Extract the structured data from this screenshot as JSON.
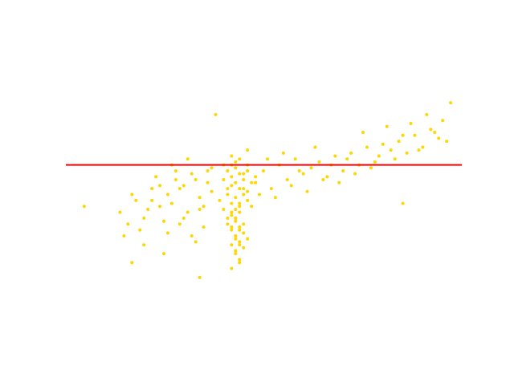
{
  "chart_data": {
    "type": "scatter",
    "x": [
      40,
      41,
      42,
      43,
      44,
      45,
      46,
      47,
      42,
      43,
      41,
      42,
      43,
      44,
      45,
      46,
      40,
      41,
      43,
      44,
      42,
      43,
      44,
      45,
      42,
      43,
      44,
      41,
      42,
      45,
      43,
      44,
      42,
      43,
      44,
      45,
      46,
      43,
      42,
      44,
      39,
      40,
      41,
      42,
      43,
      44,
      45,
      46,
      47,
      48,
      42,
      43,
      44,
      42,
      43,
      44,
      43,
      44,
      45,
      46,
      14,
      16,
      18,
      20,
      22,
      24,
      26,
      28,
      30,
      32,
      34,
      36,
      15,
      17,
      19,
      21,
      23,
      25,
      27,
      29,
      31,
      33,
      35,
      37,
      20,
      22,
      24,
      26,
      28,
      30,
      32,
      34,
      36,
      25,
      27,
      29,
      31,
      33,
      35,
      37,
      48,
      50,
      52,
      54,
      56,
      58,
      60,
      62,
      64,
      66,
      68,
      70,
      72,
      74,
      76,
      78,
      80,
      82,
      84,
      86,
      88,
      90,
      92,
      94,
      96,
      49,
      51,
      53,
      55,
      57,
      59,
      61,
      63,
      65,
      67,
      69,
      71,
      73,
      75,
      77,
      79,
      81,
      83,
      85,
      87,
      89,
      91,
      93,
      95,
      97,
      5,
      34,
      17,
      38,
      46,
      85
    ],
    "y": [
      60,
      58,
      56,
      54,
      52,
      50,
      48,
      46,
      44,
      42,
      40,
      38,
      36,
      34,
      32,
      35,
      55,
      52,
      49,
      46,
      43,
      41,
      39,
      37,
      47,
      45,
      44,
      50,
      53,
      57,
      61,
      62,
      63,
      59,
      57,
      55,
      58,
      30,
      33,
      28,
      48,
      45,
      42,
      39,
      36,
      33,
      40,
      51,
      54,
      56,
      60,
      31,
      27,
      25,
      35,
      38,
      42,
      47,
      52,
      60,
      44,
      40,
      48,
      42,
      52,
      46,
      50,
      55,
      53,
      57,
      49,
      58,
      36,
      50,
      38,
      45,
      56,
      41,
      47,
      52,
      44,
      55,
      39,
      51,
      33,
      48,
      53,
      37,
      58,
      42,
      36,
      45,
      54,
      30,
      60,
      40,
      62,
      34,
      46,
      59,
      54,
      58,
      52,
      60,
      55,
      62,
      57,
      59,
      61,
      56,
      63,
      58,
      64,
      60,
      66,
      61,
      67,
      65,
      68,
      64,
      70,
      66,
      72,
      69,
      68,
      50,
      62,
      49,
      64,
      53,
      58,
      51,
      66,
      55,
      60,
      54,
      62,
      57,
      71,
      59,
      63,
      73,
      62,
      70,
      74,
      65,
      77,
      71,
      75,
      81,
      46,
      22,
      27,
      77,
      65,
      47
    ],
    "color": "#ffd700",
    "xlim": [
      0,
      100
    ],
    "ylim": [
      0,
      100
    ],
    "hline": {
      "value": 60,
      "color": "#ff0000"
    }
  }
}
